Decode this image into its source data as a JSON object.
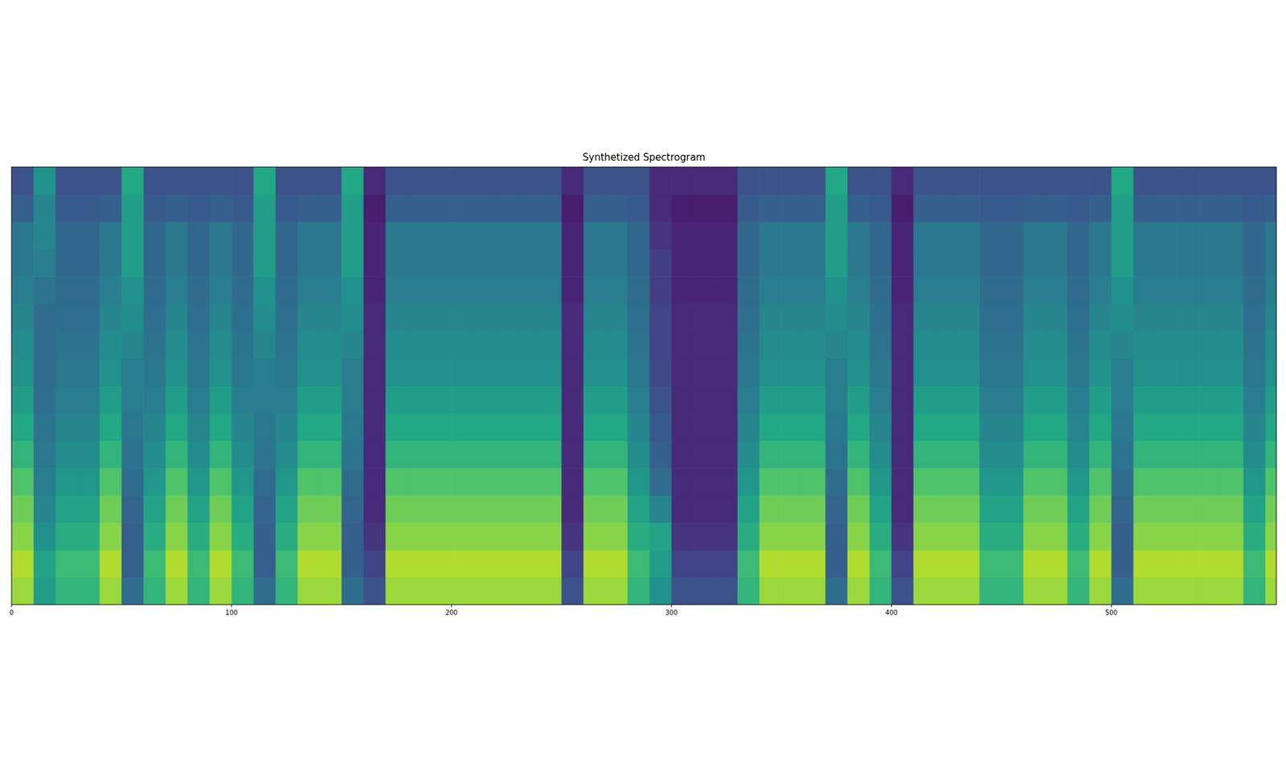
{
  "chart_data": {
    "type": "heatmap",
    "title": "Synthetized Spectrogram",
    "xlim": [
      0,
      575
    ],
    "ylim": [
      0,
      80
    ],
    "xticks": [
      0,
      100,
      200,
      300,
      400,
      500
    ],
    "yticks": [],
    "tick_labels": "x",
    "color_range": [
      0,
      1
    ],
    "xbins": [
      0,
      10,
      20,
      30,
      40,
      50,
      60,
      70,
      80,
      90,
      100,
      110,
      120,
      130,
      140,
      150,
      160,
      170,
      180,
      190,
      200,
      210,
      220,
      230,
      240,
      250,
      260,
      270,
      280,
      290,
      300,
      310,
      320,
      330,
      340,
      350,
      360,
      370,
      380,
      390,
      400,
      410,
      420,
      430,
      440,
      450,
      460,
      470,
      480,
      490,
      500,
      510,
      520,
      530,
      540,
      550,
      560,
      570,
      575
    ],
    "ybins": [
      0,
      5,
      10,
      15,
      20,
      25,
      30,
      35,
      40,
      45,
      50,
      55,
      60,
      65,
      70,
      75,
      80
    ],
    "values": [
      [
        0.85,
        0.55,
        0.65,
        0.65,
        0.85,
        0.35,
        0.65,
        0.85,
        0.65,
        0.85,
        0.65,
        0.35,
        0.65,
        0.85,
        0.85,
        0.35,
        0.25,
        0.85,
        0.85,
        0.85,
        0.85,
        0.85,
        0.85,
        0.85,
        0.85,
        0.25,
        0.85,
        0.85,
        0.65,
        0.5,
        0.25,
        0.25,
        0.25,
        0.65,
        0.85,
        0.85,
        0.85,
        0.35,
        0.85,
        0.65,
        0.25,
        0.85,
        0.85,
        0.85,
        0.65,
        0.65,
        0.85,
        0.85,
        0.65,
        0.85,
        0.35,
        0.85,
        0.85,
        0.85,
        0.85,
        0.85,
        0.65,
        0.85
      ],
      [
        0.88,
        0.58,
        0.68,
        0.68,
        0.88,
        0.3,
        0.68,
        0.88,
        0.68,
        0.88,
        0.68,
        0.3,
        0.68,
        0.88,
        0.88,
        0.3,
        0.2,
        0.88,
        0.88,
        0.88,
        0.88,
        0.88,
        0.88,
        0.88,
        0.88,
        0.2,
        0.88,
        0.88,
        0.68,
        0.55,
        0.2,
        0.2,
        0.2,
        0.68,
        0.88,
        0.88,
        0.88,
        0.3,
        0.88,
        0.68,
        0.2,
        0.88,
        0.88,
        0.88,
        0.68,
        0.68,
        0.88,
        0.88,
        0.68,
        0.88,
        0.3,
        0.88,
        0.88,
        0.88,
        0.88,
        0.88,
        0.68,
        0.88
      ],
      [
        0.82,
        0.5,
        0.62,
        0.62,
        0.82,
        0.3,
        0.62,
        0.82,
        0.62,
        0.82,
        0.62,
        0.3,
        0.62,
        0.82,
        0.82,
        0.3,
        0.15,
        0.82,
        0.82,
        0.82,
        0.82,
        0.82,
        0.82,
        0.82,
        0.82,
        0.15,
        0.82,
        0.82,
        0.62,
        0.58,
        0.15,
        0.15,
        0.15,
        0.62,
        0.82,
        0.82,
        0.82,
        0.3,
        0.82,
        0.62,
        0.15,
        0.82,
        0.82,
        0.82,
        0.62,
        0.62,
        0.82,
        0.82,
        0.62,
        0.82,
        0.3,
        0.82,
        0.82,
        0.82,
        0.82,
        0.82,
        0.62,
        0.82
      ],
      [
        0.78,
        0.45,
        0.58,
        0.58,
        0.78,
        0.32,
        0.58,
        0.78,
        0.58,
        0.78,
        0.58,
        0.32,
        0.58,
        0.78,
        0.78,
        0.32,
        0.12,
        0.78,
        0.78,
        0.78,
        0.78,
        0.78,
        0.78,
        0.78,
        0.78,
        0.12,
        0.78,
        0.78,
        0.58,
        0.45,
        0.12,
        0.12,
        0.12,
        0.58,
        0.78,
        0.78,
        0.78,
        0.32,
        0.78,
        0.58,
        0.12,
        0.78,
        0.78,
        0.78,
        0.58,
        0.58,
        0.78,
        0.78,
        0.58,
        0.78,
        0.32,
        0.78,
        0.78,
        0.78,
        0.78,
        0.78,
        0.58,
        0.78
      ],
      [
        0.72,
        0.42,
        0.52,
        0.52,
        0.72,
        0.35,
        0.52,
        0.72,
        0.52,
        0.72,
        0.52,
        0.35,
        0.52,
        0.72,
        0.72,
        0.35,
        0.12,
        0.72,
        0.72,
        0.72,
        0.72,
        0.72,
        0.72,
        0.72,
        0.72,
        0.12,
        0.72,
        0.72,
        0.52,
        0.35,
        0.12,
        0.12,
        0.12,
        0.52,
        0.72,
        0.72,
        0.72,
        0.35,
        0.72,
        0.52,
        0.12,
        0.72,
        0.72,
        0.72,
        0.52,
        0.52,
        0.72,
        0.72,
        0.52,
        0.72,
        0.35,
        0.72,
        0.72,
        0.72,
        0.72,
        0.72,
        0.52,
        0.72
      ],
      [
        0.65,
        0.4,
        0.48,
        0.48,
        0.65,
        0.38,
        0.48,
        0.65,
        0.48,
        0.65,
        0.48,
        0.38,
        0.48,
        0.65,
        0.65,
        0.38,
        0.12,
        0.65,
        0.65,
        0.65,
        0.65,
        0.65,
        0.65,
        0.65,
        0.65,
        0.12,
        0.65,
        0.65,
        0.48,
        0.3,
        0.12,
        0.12,
        0.12,
        0.48,
        0.65,
        0.65,
        0.65,
        0.38,
        0.65,
        0.48,
        0.12,
        0.65,
        0.65,
        0.65,
        0.48,
        0.48,
        0.65,
        0.65,
        0.48,
        0.65,
        0.38,
        0.65,
        0.65,
        0.65,
        0.65,
        0.65,
        0.48,
        0.65
      ],
      [
        0.6,
        0.38,
        0.45,
        0.45,
        0.6,
        0.4,
        0.45,
        0.6,
        0.45,
        0.6,
        0.45,
        0.4,
        0.45,
        0.6,
        0.6,
        0.4,
        0.12,
        0.6,
        0.6,
        0.6,
        0.6,
        0.6,
        0.6,
        0.6,
        0.6,
        0.12,
        0.6,
        0.6,
        0.45,
        0.28,
        0.12,
        0.12,
        0.12,
        0.45,
        0.6,
        0.6,
        0.6,
        0.4,
        0.6,
        0.45,
        0.12,
        0.6,
        0.6,
        0.6,
        0.45,
        0.45,
        0.6,
        0.6,
        0.45,
        0.6,
        0.4,
        0.6,
        0.6,
        0.6,
        0.6,
        0.6,
        0.45,
        0.6
      ],
      [
        0.55,
        0.36,
        0.42,
        0.42,
        0.55,
        0.42,
        0.42,
        0.55,
        0.42,
        0.55,
        0.42,
        0.42,
        0.42,
        0.55,
        0.55,
        0.42,
        0.12,
        0.55,
        0.55,
        0.55,
        0.55,
        0.55,
        0.55,
        0.55,
        0.55,
        0.12,
        0.55,
        0.55,
        0.42,
        0.25,
        0.12,
        0.12,
        0.12,
        0.42,
        0.55,
        0.55,
        0.55,
        0.42,
        0.55,
        0.42,
        0.12,
        0.55,
        0.55,
        0.55,
        0.42,
        0.42,
        0.55,
        0.55,
        0.42,
        0.55,
        0.42,
        0.55,
        0.55,
        0.55,
        0.55,
        0.55,
        0.42,
        0.55
      ],
      [
        0.5,
        0.35,
        0.4,
        0.4,
        0.5,
        0.42,
        0.4,
        0.5,
        0.4,
        0.5,
        0.4,
        0.42,
        0.4,
        0.5,
        0.5,
        0.42,
        0.12,
        0.5,
        0.5,
        0.5,
        0.5,
        0.5,
        0.5,
        0.5,
        0.5,
        0.12,
        0.5,
        0.5,
        0.4,
        0.22,
        0.12,
        0.12,
        0.12,
        0.4,
        0.5,
        0.5,
        0.5,
        0.42,
        0.5,
        0.4,
        0.12,
        0.5,
        0.5,
        0.5,
        0.4,
        0.4,
        0.5,
        0.5,
        0.4,
        0.5,
        0.42,
        0.5,
        0.5,
        0.5,
        0.5,
        0.5,
        0.4,
        0.5
      ],
      [
        0.48,
        0.35,
        0.38,
        0.38,
        0.48,
        0.45,
        0.38,
        0.48,
        0.38,
        0.48,
        0.38,
        0.45,
        0.38,
        0.48,
        0.48,
        0.45,
        0.12,
        0.48,
        0.48,
        0.48,
        0.48,
        0.48,
        0.48,
        0.48,
        0.48,
        0.12,
        0.48,
        0.48,
        0.38,
        0.2,
        0.12,
        0.12,
        0.12,
        0.38,
        0.48,
        0.48,
        0.48,
        0.45,
        0.48,
        0.38,
        0.12,
        0.48,
        0.48,
        0.48,
        0.38,
        0.38,
        0.48,
        0.48,
        0.38,
        0.48,
        0.45,
        0.48,
        0.48,
        0.48,
        0.48,
        0.48,
        0.38,
        0.48
      ],
      [
        0.45,
        0.35,
        0.36,
        0.36,
        0.45,
        0.48,
        0.36,
        0.45,
        0.36,
        0.45,
        0.36,
        0.48,
        0.36,
        0.45,
        0.45,
        0.48,
        0.12,
        0.45,
        0.45,
        0.45,
        0.45,
        0.45,
        0.45,
        0.45,
        0.45,
        0.12,
        0.45,
        0.45,
        0.36,
        0.2,
        0.12,
        0.12,
        0.12,
        0.36,
        0.45,
        0.45,
        0.45,
        0.48,
        0.45,
        0.36,
        0.12,
        0.45,
        0.45,
        0.45,
        0.36,
        0.36,
        0.45,
        0.45,
        0.36,
        0.45,
        0.48,
        0.45,
        0.45,
        0.45,
        0.45,
        0.45,
        0.36,
        0.45
      ],
      [
        0.42,
        0.38,
        0.35,
        0.35,
        0.42,
        0.5,
        0.35,
        0.42,
        0.35,
        0.42,
        0.35,
        0.5,
        0.35,
        0.42,
        0.42,
        0.5,
        0.1,
        0.42,
        0.42,
        0.42,
        0.42,
        0.42,
        0.42,
        0.42,
        0.42,
        0.1,
        0.42,
        0.42,
        0.35,
        0.18,
        0.1,
        0.1,
        0.1,
        0.35,
        0.42,
        0.42,
        0.42,
        0.5,
        0.42,
        0.35,
        0.1,
        0.42,
        0.42,
        0.42,
        0.35,
        0.35,
        0.42,
        0.42,
        0.35,
        0.42,
        0.5,
        0.42,
        0.42,
        0.42,
        0.42,
        0.42,
        0.35,
        0.42
      ],
      [
        0.4,
        0.42,
        0.33,
        0.33,
        0.4,
        0.55,
        0.33,
        0.4,
        0.33,
        0.4,
        0.33,
        0.55,
        0.33,
        0.4,
        0.4,
        0.55,
        0.1,
        0.4,
        0.4,
        0.4,
        0.4,
        0.4,
        0.4,
        0.4,
        0.4,
        0.1,
        0.4,
        0.4,
        0.33,
        0.18,
        0.1,
        0.1,
        0.1,
        0.33,
        0.4,
        0.4,
        0.4,
        0.55,
        0.4,
        0.33,
        0.1,
        0.4,
        0.4,
        0.4,
        0.33,
        0.33,
        0.4,
        0.4,
        0.33,
        0.4,
        0.55,
        0.4,
        0.4,
        0.4,
        0.4,
        0.4,
        0.33,
        0.4
      ],
      [
        0.4,
        0.45,
        0.33,
        0.33,
        0.4,
        0.55,
        0.33,
        0.4,
        0.33,
        0.4,
        0.33,
        0.55,
        0.33,
        0.4,
        0.4,
        0.55,
        0.1,
        0.4,
        0.4,
        0.4,
        0.4,
        0.4,
        0.4,
        0.4,
        0.4,
        0.1,
        0.4,
        0.4,
        0.33,
        0.15,
        0.1,
        0.1,
        0.1,
        0.33,
        0.4,
        0.4,
        0.4,
        0.55,
        0.4,
        0.33,
        0.1,
        0.4,
        0.4,
        0.4,
        0.33,
        0.33,
        0.4,
        0.4,
        0.33,
        0.4,
        0.55,
        0.4,
        0.4,
        0.4,
        0.4,
        0.4,
        0.33,
        0.4
      ],
      [
        0.3,
        0.45,
        0.28,
        0.28,
        0.3,
        0.55,
        0.28,
        0.3,
        0.28,
        0.3,
        0.28,
        0.55,
        0.28,
        0.3,
        0.3,
        0.55,
        0.08,
        0.3,
        0.3,
        0.3,
        0.3,
        0.3,
        0.3,
        0.3,
        0.3,
        0.08,
        0.3,
        0.3,
        0.28,
        0.12,
        0.08,
        0.08,
        0.08,
        0.28,
        0.3,
        0.3,
        0.3,
        0.55,
        0.3,
        0.28,
        0.08,
        0.3,
        0.3,
        0.3,
        0.28,
        0.28,
        0.3,
        0.3,
        0.28,
        0.3,
        0.55,
        0.3,
        0.3,
        0.3,
        0.3,
        0.3,
        0.28,
        0.3
      ],
      [
        0.25,
        0.5,
        0.25,
        0.25,
        0.25,
        0.6,
        0.25,
        0.25,
        0.25,
        0.25,
        0.25,
        0.6,
        0.25,
        0.25,
        0.25,
        0.6,
        0.12,
        0.25,
        0.25,
        0.25,
        0.25,
        0.25,
        0.25,
        0.25,
        0.25,
        0.12,
        0.25,
        0.25,
        0.25,
        0.12,
        0.12,
        0.12,
        0.12,
        0.25,
        0.25,
        0.25,
        0.25,
        0.6,
        0.25,
        0.25,
        0.12,
        0.25,
        0.25,
        0.25,
        0.25,
        0.25,
        0.25,
        0.25,
        0.25,
        0.25,
        0.6,
        0.25,
        0.25,
        0.25,
        0.25,
        0.25,
        0.25,
        0.25
      ]
    ]
  }
}
